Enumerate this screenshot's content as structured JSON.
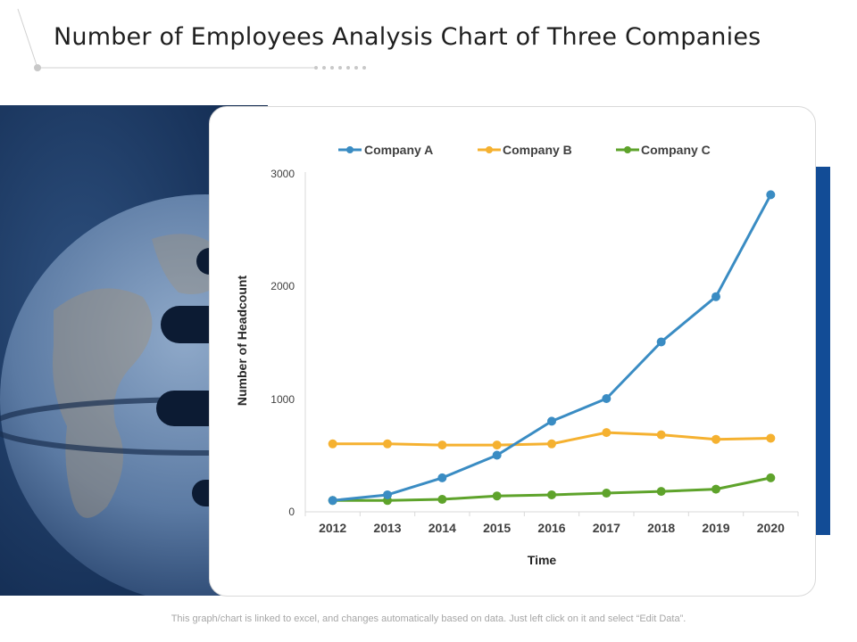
{
  "page": {
    "title": "Number of Employees Analysis Chart of Three Companies",
    "footer_note": "This graph/chart is linked to excel, and changes automatically based on data. Just left click on it and select “Edit Data”."
  },
  "colors": {
    "accent": "#124c96",
    "company_a": "#3a8cc3",
    "company_b": "#f5b130",
    "company_c": "#5ea32b"
  },
  "chart_data": {
    "type": "line",
    "title": "",
    "xlabel": "Time",
    "ylabel": "Number of Headcount",
    "categories": [
      "2012",
      "2013",
      "2014",
      "2015",
      "2016",
      "2017",
      "2018",
      "2019",
      "2020"
    ],
    "ylim": [
      0,
      3000
    ],
    "yticks": [
      "0",
      "1000",
      "2000",
      "3000"
    ],
    "legend_position": "top",
    "grid": false,
    "series": [
      {
        "name": "Company A",
        "color": "#3a8cc3",
        "values": [
          100,
          150,
          300,
          500,
          800,
          1000,
          1500,
          1900,
          2800
        ]
      },
      {
        "name": "Company B",
        "color": "#f5b130",
        "values": [
          600,
          600,
          590,
          590,
          600,
          700,
          680,
          640,
          650
        ]
      },
      {
        "name": "Company C",
        "color": "#5ea32b",
        "values": [
          100,
          100,
          110,
          140,
          150,
          165,
          180,
          200,
          300
        ]
      }
    ]
  }
}
